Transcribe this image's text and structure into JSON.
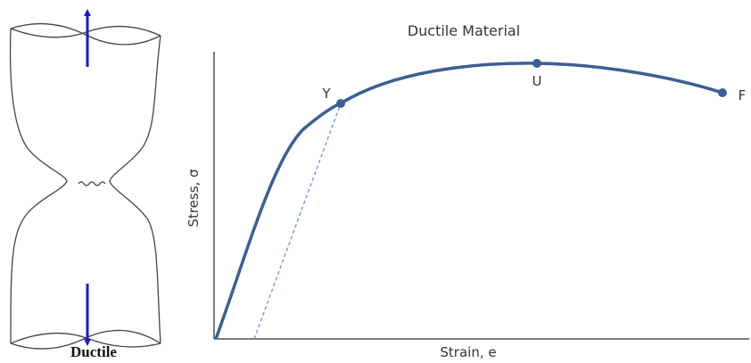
{
  "specimen": {
    "label": "Ductile"
  },
  "graph": {
    "title": "Ductile Material",
    "y_axis_label": "Stress, σ",
    "x_axis_label": "Strain, e",
    "points": [
      {
        "label": "Y"
      },
      {
        "label": "U"
      },
      {
        "label": "F"
      }
    ]
  }
}
